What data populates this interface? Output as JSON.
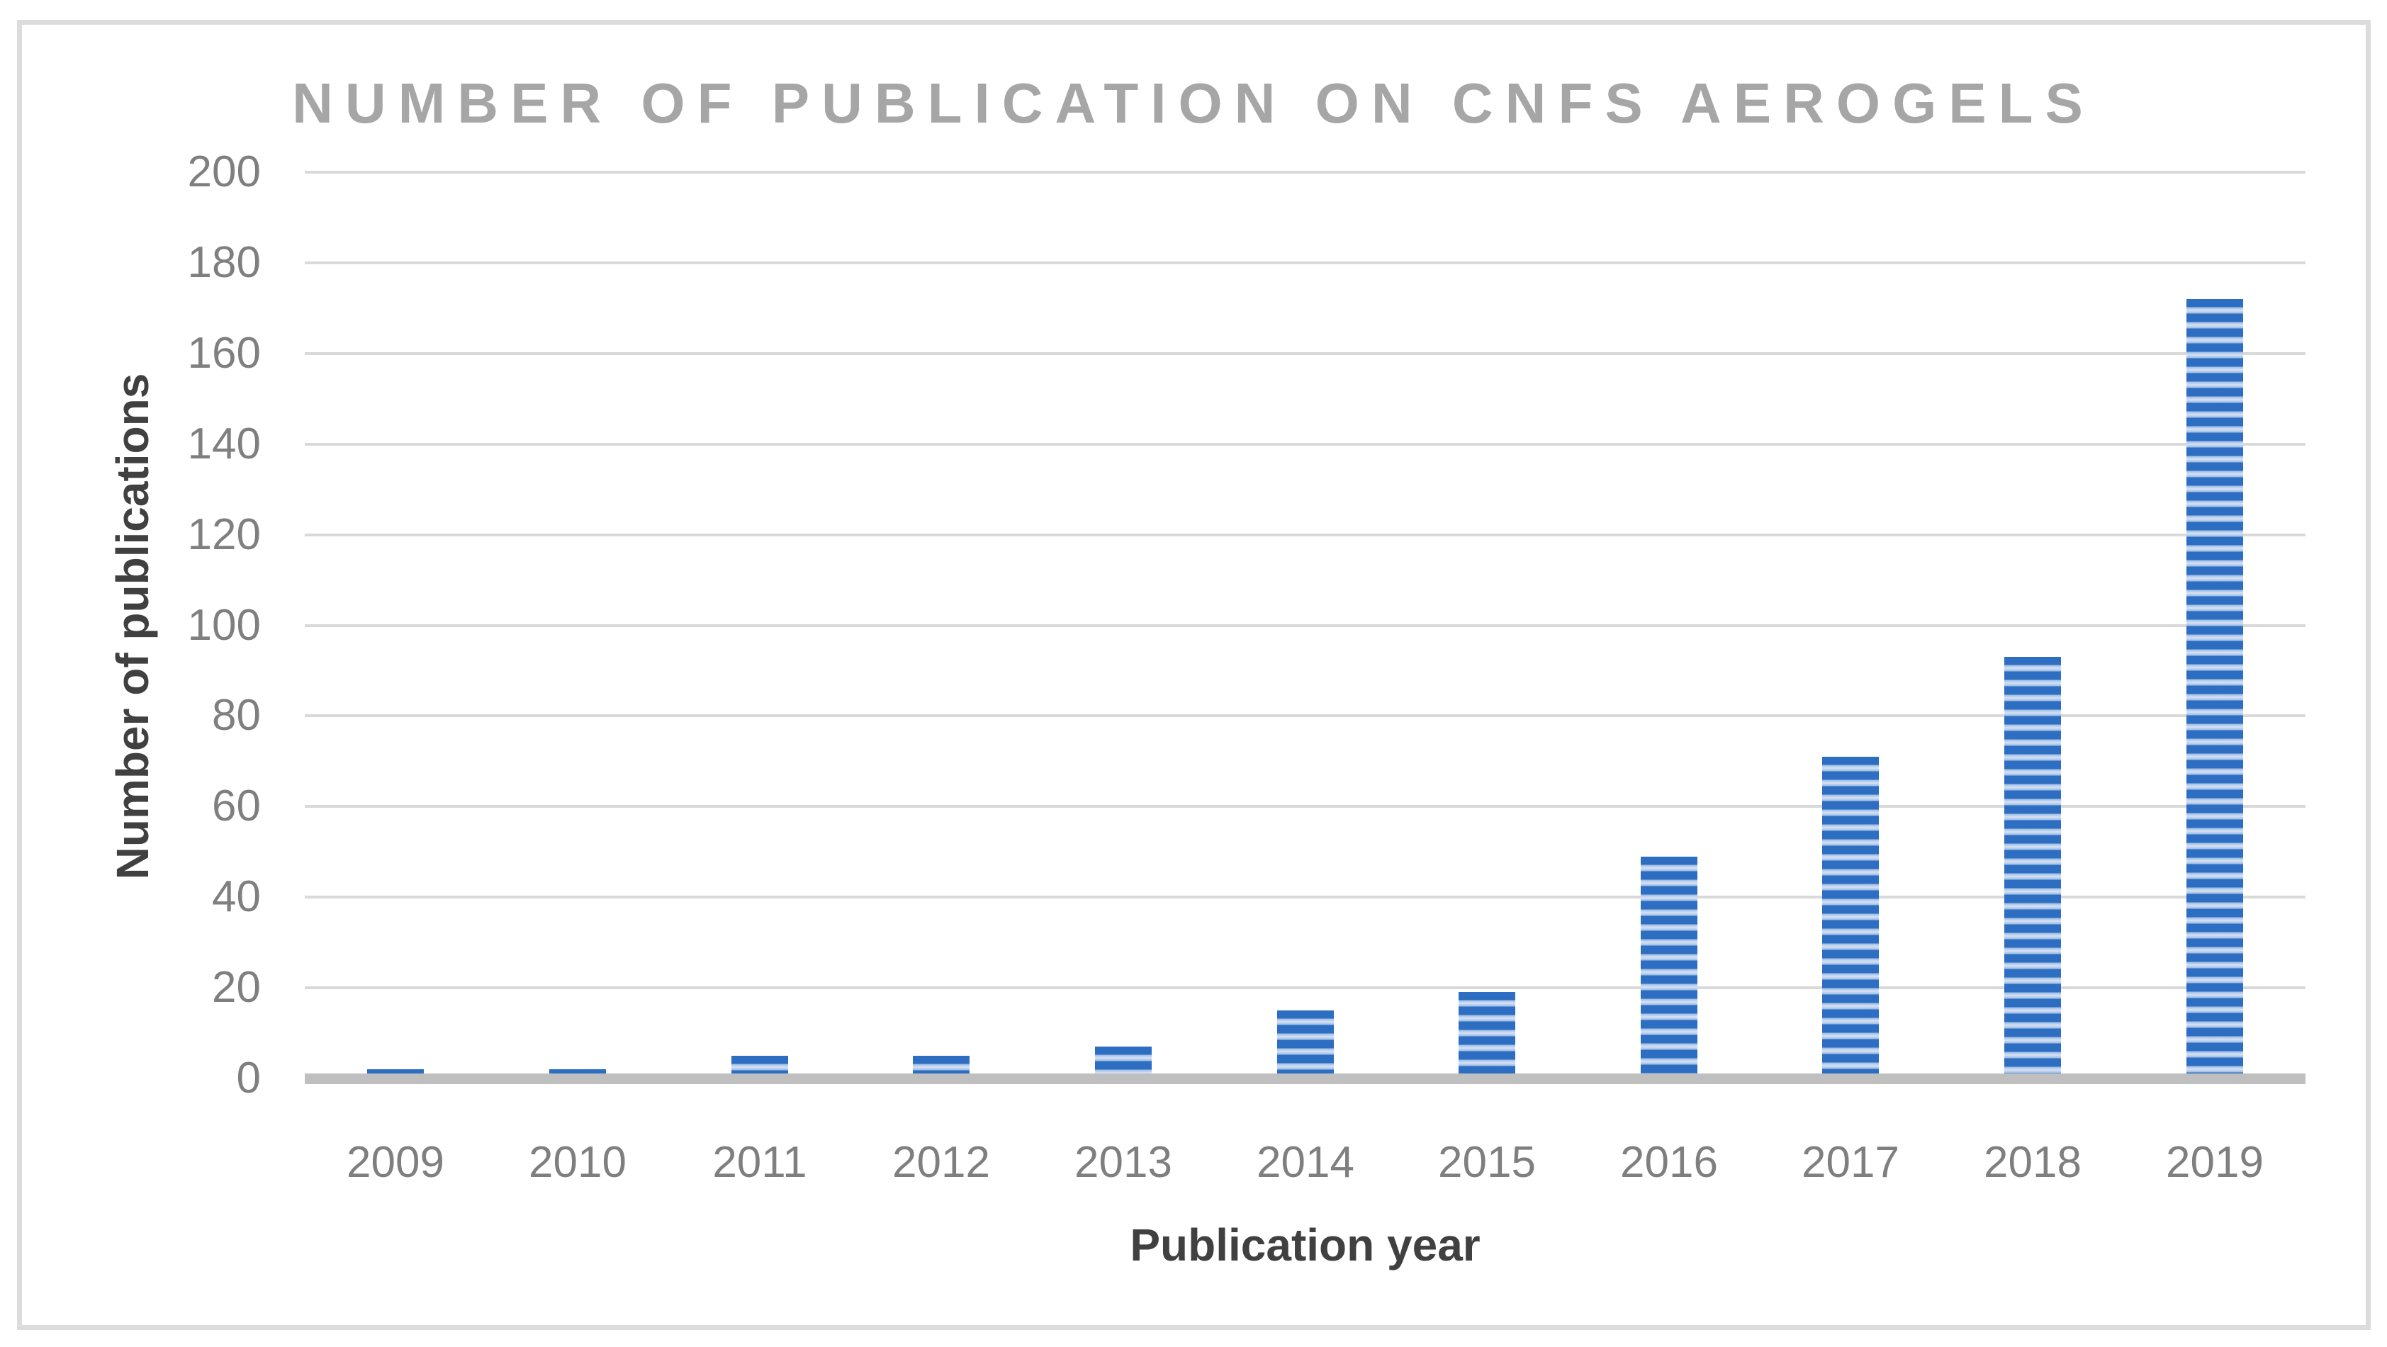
{
  "chart_data": {
    "type": "bar",
    "title": "NUMBER OF PUBLICATION ON CNFS AEROGELS",
    "xlabel": "Publication year",
    "ylabel": "Number of publications",
    "categories": [
      "2009",
      "2010",
      "2011",
      "2012",
      "2013",
      "2014",
      "2015",
      "2016",
      "2017",
      "2018",
      "2019"
    ],
    "values": [
      2,
      2,
      5,
      5,
      7,
      15,
      19,
      49,
      71,
      93,
      172
    ],
    "ylim": [
      0,
      200
    ],
    "ytick_step": 20,
    "yticks": [
      "0",
      "20",
      "40",
      "60",
      "80",
      "100",
      "120",
      "140",
      "160",
      "180",
      "200"
    ],
    "grid": true,
    "legend": "none",
    "bar_pattern": "horizontal-stripes",
    "colors": {
      "bar_stripe_dark": "#2d6ec2",
      "bar_stripe_mid": "#9dbDE6",
      "bar_stripe_light": "#d7e2f3",
      "gridline": "#d9d9d9",
      "axis_baseline": "#bfbfbf",
      "title_text": "#a6a6a6",
      "tick_text": "#7f7f7f",
      "axis_title_text": "#404040",
      "figure_border": "#dcdcdc"
    }
  }
}
